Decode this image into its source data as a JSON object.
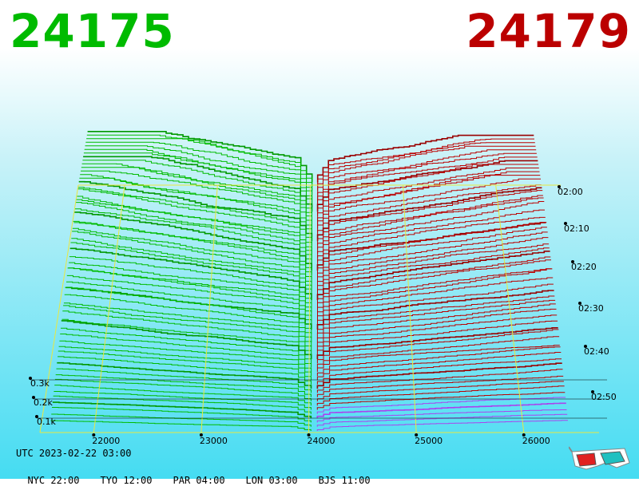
{
  "header": {
    "bid_price": "24175",
    "ask_price": "24179",
    "bid_color": "#00bb00",
    "ask_color": "#bb0000"
  },
  "footer": {
    "utc_label": "UTC 2023-02-22 03:00",
    "zones": [
      "NYC 22:00",
      "TYO 12:00",
      "PAR 04:00",
      "LON 03:00",
      "BJS 11:00"
    ]
  },
  "chart_data": {
    "type": "area",
    "x_ticks": [
      "22000",
      "23000",
      "24000",
      "25000",
      "26000"
    ],
    "x_tick_values": [
      22000,
      23000,
      24000,
      25000,
      26000
    ],
    "xlim": [
      21500,
      26700
    ],
    "y_ticks": [
      "0.3k",
      "0.2k",
      "0.1k"
    ],
    "y_tick_values": [
      300,
      200,
      100
    ],
    "time_ticks": [
      "02:00",
      "02:10",
      "02:20",
      "02:30",
      "02:40",
      "02:50"
    ],
    "series": [
      {
        "side": "bid",
        "color": "#00bb00",
        "x_edge": 21600,
        "depth_edge": 430
      },
      {
        "side": "ask",
        "color": "#bb0000",
        "x_edge": 26350,
        "depth_edge": 380
      }
    ],
    "snapshots": 60,
    "grid": true
  },
  "icons": {
    "glasses": "3d-glasses-icon"
  }
}
